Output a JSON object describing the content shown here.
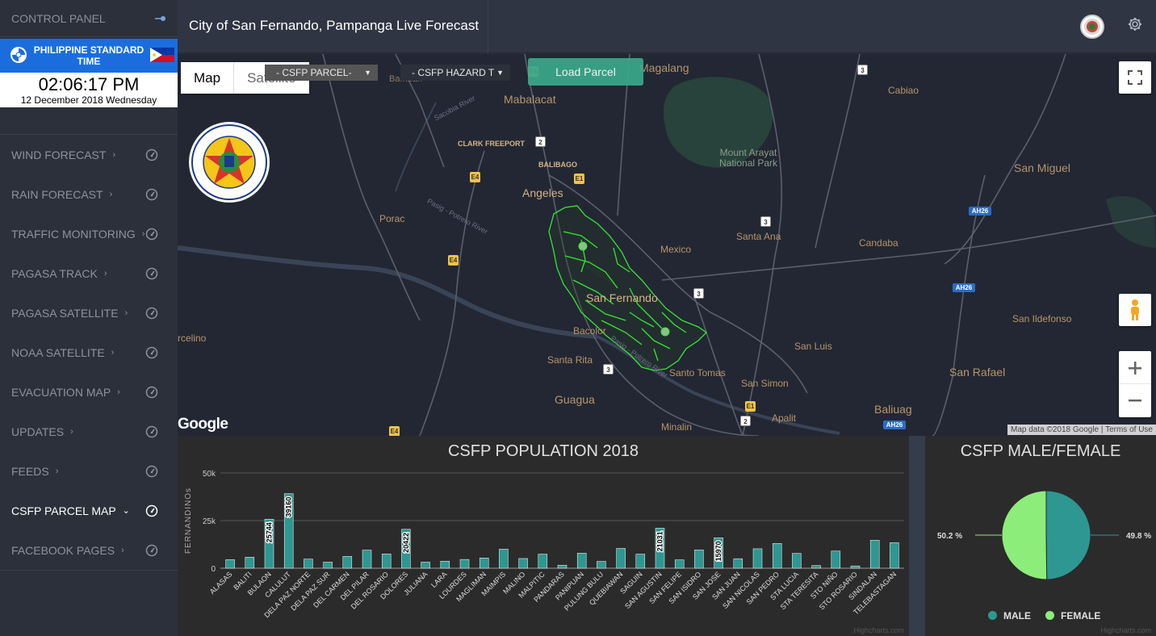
{
  "sidebar": {
    "title": "CONTROL PANEL",
    "clock": {
      "label": "PHILIPPINE STANDARD TIME",
      "time": "02:06:17 PM",
      "date": "12 December 2018 Wednesday"
    },
    "items": [
      {
        "label": "WIND FORECAST"
      },
      {
        "label": "RAIN FORECAST"
      },
      {
        "label": "TRAFFIC MONITORING"
      },
      {
        "label": "PAGASA TRACK"
      },
      {
        "label": "PAGASA SATELLITE"
      },
      {
        "label": "NOAA SATELLITE"
      },
      {
        "label": "EVACUATION MAP"
      },
      {
        "label": "UPDATES"
      },
      {
        "label": "FEEDS"
      },
      {
        "label": "CSFP PARCEL MAP",
        "active": true
      },
      {
        "label": "FACEBOOK PAGES"
      }
    ]
  },
  "header": {
    "title": "City of San Fernando, Pampanga Live Forecast"
  },
  "map": {
    "type_map": "Map",
    "type_satellite": "Satellite",
    "parcel_select": "- CSFP PARCEL-",
    "hazard_select": "- CSFP HAZARD T",
    "load_button": "Load Parcel",
    "google": "Google",
    "attribution": "Map data ©2018 Google | Terms of Use",
    "seal_text": "CITY OF SAN FERNANDO",
    "seal_sub": "PAMPANGA, PHILIPPINES",
    "labels": {
      "magalang": "Magalang",
      "bamban": "Bamban",
      "mabalacat": "Mabalacat",
      "cabiao": "Cabiao",
      "clark": "CLARK FREEPORT",
      "balibago": "BALIBAGO",
      "arayat": "Mount Arayat\nNational Park",
      "sanmiguel": "San Miguel",
      "angeles": "Angeles",
      "porac": "Porac",
      "santaana": "Santa Ana",
      "candaba": "Candaba",
      "mexico": "Mexico",
      "sanfernando": "San Fernando",
      "bacolor": "Bacolor",
      "sanildefonso": "San Ildefonso",
      "sanluis": "San Luis",
      "santarita": "Santa Rita",
      "santotomas": "Santo Tomas",
      "sansimon": "San Simon",
      "sanrafael": "San Rafael",
      "guagua": "Guagua",
      "apalit": "Apalit",
      "baliuag": "Baliuag",
      "minalin": "Minalin",
      "floridablanca": "rcelino",
      "sacobia": "Sacobia River",
      "pasig": "Pasig - Potrero River",
      "pasig2": "Pasig - Potrero River"
    },
    "shields": {
      "e4": "E4",
      "e1": "E1",
      "n2": "2",
      "n3": "3",
      "ah26": "AH26"
    }
  },
  "population_chart": {
    "title": "CSFP POPULATION 2018",
    "credit": "Highcharts.com",
    "chart_data": {
      "type": "bar",
      "title": "CSFP POPULATION 2018",
      "ylabel": "FERNANDINOs",
      "ylim": [
        0,
        50000
      ],
      "yticks": [
        "0",
        "25k",
        "50k"
      ],
      "categories": [
        "ALASAS",
        "BALITI",
        "BULAON",
        "CALULUT",
        "DELA PAZ NORTE",
        "DELA PAZ SUR",
        "DEL CARMEN",
        "DEL PILAR",
        "DEL ROSARIO",
        "DOLORES",
        "JULIANA",
        "LARA",
        "LOURDES",
        "MAGLIMAN",
        "MAIMPIS",
        "MALINO",
        "MALPITIC",
        "PANDARAS",
        "PANIPUAN",
        "PULUNG BULU",
        "QUEBIAWAN",
        "SAGUIN",
        "SAN AGUSTIN",
        "SAN FELIPE",
        "SAN ISIDRO",
        "SAN JOSE",
        "SAN JUAN",
        "SAN NICOLAS",
        "SAN PEDRO",
        "STA LUCIA",
        "STA TERESITA",
        "STO NIÑO",
        "STO ROSARIO",
        "SINDALAN",
        "TELEBASTAGAN"
      ],
      "values": [
        4500,
        5800,
        25744,
        39160,
        4800,
        3200,
        6200,
        9500,
        7500,
        20422,
        3200,
        3700,
        4600,
        5400,
        10000,
        5100,
        7400,
        1600,
        7900,
        3600,
        10400,
        7400,
        21031,
        4400,
        9600,
        15970,
        5000,
        10200,
        13000,
        7800,
        1400,
        9000,
        1200,
        14700,
        13400
      ],
      "labels": {
        "2": "25744",
        "3": "39160",
        "9": "20422",
        "22": "21031",
        "25": "15970"
      },
      "color": "#2e9791"
    }
  },
  "gender_chart": {
    "title": "CSFP MALE/FEMALE",
    "credit": "Highcharts.com",
    "chart_data": {
      "type": "pie",
      "title": "CSFP MALE/FEMALE",
      "series": [
        {
          "name": "MALE",
          "value": 49.8,
          "color": "#2e9791"
        },
        {
          "name": "FEMALE",
          "value": 50.2,
          "color": "#8ded7a"
        }
      ],
      "labels": [
        "50.2 %",
        "49.8 %"
      ]
    },
    "legend": {
      "male": "MALE",
      "female": "FEMALE"
    }
  }
}
